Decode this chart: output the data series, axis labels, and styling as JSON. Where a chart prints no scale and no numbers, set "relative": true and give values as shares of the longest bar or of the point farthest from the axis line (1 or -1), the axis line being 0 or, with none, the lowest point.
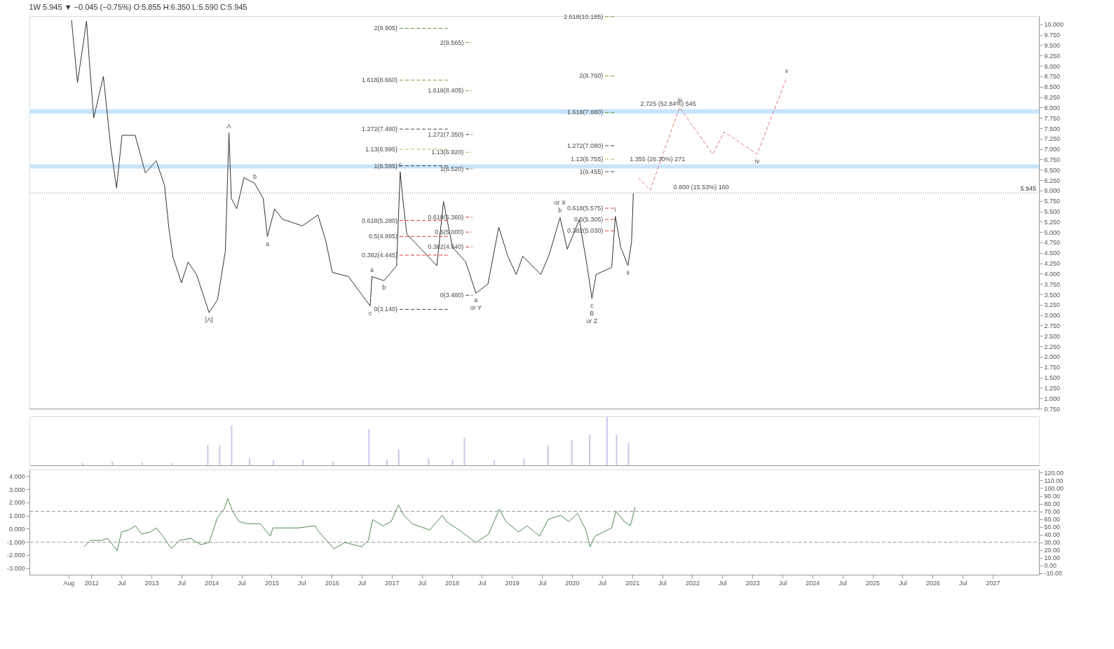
{
  "chart_data": [
    {
      "type": "line",
      "title": "1W 5.945 ▼ −0.045 (−0.75%) O:5.855 H:6.350 L:5.590 C:5.945",
      "xlim": [
        2010.97,
        2027.77
      ],
      "ylim": [
        0.75,
        10.2
      ],
      "tick_labels": "y",
      "yticks": [
        {
          "value": 0.75,
          "label": "0.750"
        },
        {
          "value": 1,
          "label": "1.000"
        },
        {
          "value": 1.25,
          "label": "1.250"
        },
        {
          "value": 1.5,
          "label": "1.500"
        },
        {
          "value": 1.75,
          "label": "1.750"
        },
        {
          "value": 2,
          "label": "2.000"
        },
        {
          "value": 2.25,
          "label": "2.250"
        },
        {
          "value": 2.5,
          "label": "2.500"
        },
        {
          "value": 2.75,
          "label": "2.750"
        },
        {
          "value": 3,
          "label": "3.000"
        },
        {
          "value": 3.25,
          "label": "3.250"
        },
        {
          "value": 3.5,
          "label": "3.500"
        },
        {
          "value": 3.75,
          "label": "3.750"
        },
        {
          "value": 4,
          "label": "4.000"
        },
        {
          "value": 4.25,
          "label": "4.250"
        },
        {
          "value": 4.5,
          "label": "4.500"
        },
        {
          "value": 4.75,
          "label": "4.750"
        },
        {
          "value": 5,
          "label": "5.000"
        },
        {
          "value": 5.25,
          "label": "5.250"
        },
        {
          "value": 5.5,
          "label": "5.500"
        },
        {
          "value": 5.75,
          "label": "5.750"
        },
        {
          "value": 6,
          "label": "6.000"
        },
        {
          "value": 6.25,
          "label": "6.250"
        },
        {
          "value": 6.5,
          "label": "6.500"
        },
        {
          "value": 6.75,
          "label": "6.750"
        },
        {
          "value": 7,
          "label": "7.000"
        },
        {
          "value": 7.25,
          "label": "7.250"
        },
        {
          "value": 7.5,
          "label": "7.500"
        },
        {
          "value": 7.75,
          "label": "7.750"
        },
        {
          "value": 8,
          "label": "8.000"
        },
        {
          "value": 8.25,
          "label": "8.250"
        },
        {
          "value": 8.5,
          "label": "8.500"
        },
        {
          "value": 8.75,
          "label": "8.750"
        },
        {
          "value": 9,
          "label": "9.000"
        },
        {
          "value": 9.25,
          "label": "9.250"
        },
        {
          "value": 9.5,
          "label": "9.500"
        },
        {
          "value": 9.75,
          "label": "9.750"
        },
        {
          "value": 10,
          "label": "10.000"
        }
      ],
      "series": [
        {
          "type": "line",
          "color": "#333333",
          "x": [
            2011.67,
            2011.77,
            2011.92,
            2011.98,
            2012.04,
            2012.2,
            2012.32,
            2012.42,
            2012.51,
            2012.73,
            2012.9,
            2013.08,
            2013.22,
            2013.29,
            2013.36,
            2013.5,
            2013.61,
            2013.75,
            2013.96,
            2014.1,
            2014.23,
            2014.29,
            2014.33,
            2014.42,
            2014.54,
            2014.72,
            2014.86,
            2014.93,
            2015.05,
            2015.18,
            2015.51,
            2015.77,
            2015.9,
            2016.01,
            2016.28,
            2016.41,
            2016.64,
            2016.67,
            2016.87,
            2017.08,
            2017.14,
            2017.18,
            2017.25,
            2017.49,
            2017.75,
            2017.86,
            2018.01,
            2018.23,
            2018.4,
            2018.6,
            2018.78,
            2018.93,
            2019.07,
            2019.18,
            2019.48,
            2019.62,
            2019.8,
            2019.92,
            2020.12,
            2020.25,
            2020.33,
            2020.4,
            2020.66,
            2020.72,
            2020.81,
            2020.93,
            2020.99,
            2021.02
          ],
          "values": [
            10.1,
            8.6,
            10.08,
            8.86,
            7.75,
            8.75,
            7.08,
            6.06,
            7.33,
            7.33,
            6.42,
            6.72,
            6.11,
            5.1,
            4.39,
            3.78,
            4.28,
            3.98,
            3.06,
            3.37,
            4.54,
            7.39,
            5.81,
            5.56,
            6.31,
            6.17,
            5.81,
            4.89,
            5.56,
            5.31,
            5.15,
            5.41,
            4.8,
            4.03,
            3.93,
            3.67,
            3.22,
            3.93,
            3.83,
            4.19,
            6.45,
            5.84,
            4.95,
            4.59,
            4.19,
            5.74,
            4.64,
            4.28,
            3.53,
            3.75,
            5.12,
            4.42,
            3.98,
            4.42,
            3.98,
            4.46,
            5.35,
            4.59,
            5.3,
            4.19,
            3.4,
            3.98,
            4.15,
            5.38,
            4.64,
            4.19,
            4.77,
            5.945
          ]
        },
        {
          "type": "line",
          "color": "#e57373",
          "line_style": "dashed",
          "x": [
            2021.1,
            2021.3,
            2021.79,
            2022.34,
            2022.53,
            2023.08,
            2023.57
          ],
          "values": [
            6.31,
            6.01,
            8.0,
            6.88,
            7.41,
            6.88,
            8.71
          ]
        },
        {
          "type": "line",
          "color": "#689f38",
          "line_style": "dashed",
          "x": [
            2017.13,
            2017.93
          ],
          "values": [
            9.905,
            9.905
          ]
        },
        {
          "type": "line",
          "color": "#689f38",
          "line_style": "dashed",
          "x": [
            2017.13,
            2017.93
          ],
          "values": [
            8.66,
            8.66
          ]
        },
        {
          "type": "line",
          "color": "#424242",
          "line_style": "dashed",
          "x": [
            2017.13,
            2017.93
          ],
          "values": [
            7.48,
            7.48
          ]
        },
        {
          "type": "line",
          "color": "#9ccc65",
          "line_style": "dashed",
          "x": [
            2017.13,
            2017.93
          ],
          "values": [
            6.995,
            6.995
          ]
        },
        {
          "type": "line",
          "color": "#424242",
          "line_style": "dashed",
          "x": [
            2017.13,
            2017.93
          ],
          "values": [
            6.595,
            6.595
          ]
        },
        {
          "type": "line",
          "color": "#e53935",
          "line_style": "dashed",
          "x": [
            2017.13,
            2017.93
          ],
          "values": [
            5.28,
            5.28
          ]
        },
        {
          "type": "line",
          "color": "#e53935",
          "line_style": "dashed",
          "x": [
            2017.13,
            2017.93
          ],
          "values": [
            4.895,
            4.895
          ]
        },
        {
          "type": "line",
          "color": "#e53935",
          "line_style": "dashed",
          "x": [
            2017.13,
            2017.93
          ],
          "values": [
            4.445,
            4.445
          ]
        },
        {
          "type": "line",
          "color": "#424242",
          "line_style": "dashed",
          "x": [
            2017.13,
            2017.93
          ],
          "values": [
            3.14,
            3.14
          ]
        },
        {
          "type": "line",
          "color": "#689f38",
          "line_style": "dashed",
          "x": [
            2018.23,
            2018.34
          ],
          "values": [
            9.565,
            9.565
          ]
        },
        {
          "type": "line",
          "color": "#689f38",
          "line_style": "dashed",
          "x": [
            2018.23,
            2018.34
          ],
          "values": [
            8.405,
            8.405
          ]
        },
        {
          "type": "line",
          "color": "#424242",
          "line_style": "dashed",
          "x": [
            2018.23,
            2018.34
          ],
          "values": [
            7.35,
            7.35
          ]
        },
        {
          "type": "line",
          "color": "#9ccc65",
          "line_style": "dashed",
          "x": [
            2018.23,
            2018.34
          ],
          "values": [
            6.92,
            6.92
          ]
        },
        {
          "type": "line",
          "color": "#424242",
          "line_style": "dashed",
          "x": [
            2018.23,
            2018.34
          ],
          "values": [
            6.52,
            6.52
          ]
        },
        {
          "type": "line",
          "color": "#e53935",
          "line_style": "dashed",
          "x": [
            2018.23,
            2018.34
          ],
          "values": [
            5.36,
            5.36
          ]
        },
        {
          "type": "line",
          "color": "#e53935",
          "line_style": "dashed",
          "x": [
            2018.23,
            2018.34
          ],
          "values": [
            5.0,
            5.0
          ]
        },
        {
          "type": "line",
          "color": "#e53935",
          "line_style": "dashed",
          "x": [
            2018.23,
            2018.34
          ],
          "values": [
            4.64,
            4.64
          ]
        },
        {
          "type": "line",
          "color": "#424242",
          "line_style": "dashed",
          "x": [
            2018.23,
            2018.34
          ],
          "values": [
            3.48,
            3.48
          ]
        },
        {
          "type": "line",
          "color": "#689f38",
          "line_style": "dashed",
          "x": [
            2020.55,
            2020.72
          ],
          "values": [
            10.185,
            10.185
          ]
        },
        {
          "type": "line",
          "color": "#689f38",
          "line_style": "dashed",
          "x": [
            2020.55,
            2020.72
          ],
          "values": [
            8.76,
            8.76
          ]
        },
        {
          "type": "line",
          "color": "#689f38",
          "line_style": "dashed",
          "x": [
            2020.55,
            2020.72
          ],
          "values": [
            7.88,
            7.88
          ]
        },
        {
          "type": "line",
          "color": "#424242",
          "line_style": "dashed",
          "x": [
            2020.55,
            2020.72
          ],
          "values": [
            7.08,
            7.08
          ]
        },
        {
          "type": "line",
          "color": "#9ccc65",
          "line_style": "dashed",
          "x": [
            2020.55,
            2020.72
          ],
          "values": [
            6.755,
            6.755
          ]
        },
        {
          "type": "line",
          "color": "#424242",
          "line_style": "dashed",
          "x": [
            2020.55,
            2020.72
          ],
          "values": [
            6.455,
            6.455
          ]
        },
        {
          "type": "line",
          "color": "#e53935",
          "line_style": "dashed",
          "x": [
            2020.55,
            2020.72
          ],
          "values": [
            5.575,
            5.575
          ]
        },
        {
          "type": "line",
          "color": "#e53935",
          "line_style": "dashed",
          "x": [
            2020.55,
            2020.72
          ],
          "values": [
            5.305,
            5.305
          ]
        },
        {
          "type": "line",
          "color": "#e53935",
          "line_style": "dashed",
          "x": [
            2020.55,
            2020.72
          ],
          "values": [
            5.03,
            5.03
          ]
        }
      ],
      "ref_lines": [
        {
          "axis": "y",
          "value": 5.945,
          "label": "5.945",
          "color": "#888888",
          "line_style": "dotted"
        }
      ],
      "bands": [
        {
          "axis": "y",
          "from": 6.53,
          "to": 6.63,
          "color": "#bbdefb"
        },
        {
          "axis": "y",
          "from": 7.85,
          "to": 7.96,
          "color": "#bbdefb"
        }
      ],
      "annotations": [
        {
          "text": "2(9.905)",
          "x": 2017.13,
          "y": 9.905
        },
        {
          "text": "1.618(8.660)",
          "x": 2017.13,
          "y": 8.66
        },
        {
          "text": "1.272(7.480)",
          "x": 2017.13,
          "y": 7.48
        },
        {
          "text": "1.13(6.995)",
          "x": 2017.13,
          "y": 6.995
        },
        {
          "text": "1(6.595)",
          "x": 2017.13,
          "y": 6.595
        },
        {
          "text": "0.618(5.280)",
          "x": 2017.13,
          "y": 5.28
        },
        {
          "text": "0.5(4.895)",
          "x": 2017.13,
          "y": 4.895
        },
        {
          "text": "0.382(4.445)",
          "x": 2017.13,
          "y": 4.445
        },
        {
          "text": "0(3.140)",
          "x": 2017.13,
          "y": 3.14
        },
        {
          "text": "2(9.565)",
          "x": 2018.23,
          "y": 9.565
        },
        {
          "text": "1.618(8.405)",
          "x": 2018.23,
          "y": 8.405
        },
        {
          "text": "1.272(7.350)",
          "x": 2018.23,
          "y": 7.35
        },
        {
          "text": "1.13(6.920)",
          "x": 2018.23,
          "y": 6.92
        },
        {
          "text": "1(6.520)",
          "x": 2018.23,
          "y": 6.52
        },
        {
          "text": "0.618(5.360)",
          "x": 2018.23,
          "y": 5.36
        },
        {
          "text": "0.5(5.000)",
          "x": 2018.23,
          "y": 5.0
        },
        {
          "text": "0.382(4.640)",
          "x": 2018.23,
          "y": 4.64
        },
        {
          "text": "0(3.480)",
          "x": 2018.23,
          "y": 3.48
        },
        {
          "text": "2.618(10.185)",
          "x": 2020.55,
          "y": 10.185
        },
        {
          "text": "2(8.760)",
          "x": 2020.55,
          "y": 8.76
        },
        {
          "text": "1.618(7.880)",
          "x": 2020.55,
          "y": 7.88
        },
        {
          "text": "1.272(7.080)",
          "x": 2020.55,
          "y": 7.08
        },
        {
          "text": "1.13(6.755)",
          "x": 2020.55,
          "y": 6.755
        },
        {
          "text": "1(6.455)",
          "x": 2020.55,
          "y": 6.455
        },
        {
          "text": "0.618(5.575)",
          "x": 2020.55,
          "y": 5.575
        },
        {
          "text": "0.5(5.305)",
          "x": 2020.55,
          "y": 5.305
        },
        {
          "text": "0.382(5.030)",
          "x": 2020.55,
          "y": 5.03
        },
        {
          "text": "2.725 (52.84%) 545",
          "x": 2021.6,
          "y": 7.96
        },
        {
          "text": "1.355 (26.30%) 271",
          "x": 2021.42,
          "y": 6.63
        },
        {
          "text": "0.800 (15.53%) 160",
          "x": 2022.15,
          "y": 5.945
        },
        {
          "text": "a",
          "x": 2014.93,
          "y": 4.89
        },
        {
          "text": "b",
          "x": 2014.72,
          "y": 6.17
        },
        {
          "text": "a",
          "x": 2016.67,
          "y": 3.93
        },
        {
          "text": "b",
          "x": 2016.87,
          "y": 3.83
        },
        {
          "text": "c",
          "x": 2016.64,
          "y": 3.22
        },
        {
          "text": "c",
          "x": 2017.14,
          "y": 6.45
        },
        {
          "text": "a",
          "x": 2018.4,
          "y": 3.53
        },
        {
          "text": "b",
          "x": 2019.8,
          "y": 5.35
        },
        {
          "text": "c",
          "x": 2020.33,
          "y": 3.4
        },
        {
          "text": "i",
          "x": 2020.72,
          "y": 5.38
        },
        {
          "text": "ii",
          "x": 2020.93,
          "y": 4.19
        },
        {
          "text": "iii",
          "x": 2021.79,
          "y": 8.0
        },
        {
          "text": "iv",
          "x": 2023.08,
          "y": 6.88
        },
        {
          "text": "v",
          "x": 2023.57,
          "y": 8.71
        },
        {
          "text": "A",
          "x": 2014.29,
          "y": 7.39
        },
        {
          "text": "[A]",
          "x": 2013.96,
          "y": 3.06
        },
        {
          "text": "B",
          "x": 2020.33,
          "y": 3.4
        },
        {
          "text": "or X",
          "x": 2019.8,
          "y": 5.35
        },
        {
          "text": "or Y",
          "x": 2018.4,
          "y": 3.53
        },
        {
          "text": "or Z",
          "x": 2020.33,
          "y": 3.4
        }
      ]
    },
    {
      "type": "bar",
      "relative": true,
      "tick_labels": false,
      "xlim": [
        2010.97,
        2027.77
      ],
      "series": [
        {
          "color": "#c5cae9",
          "x": [
            2011.8,
            2012.3,
            2012.8,
            2013.3,
            2013.9,
            2014.1,
            2014.3,
            2014.6,
            2015.0,
            2015.5,
            2016.0,
            2016.6,
            2016.9,
            2017.1,
            2017.6,
            2018.0,
            2018.2,
            2018.7,
            2019.2,
            2019.6,
            2020.0,
            2020.3,
            2020.59,
            2020.75,
            2020.95
          ],
          "values": [
            0.05,
            0.08,
            0.06,
            0.05,
            0.41,
            0.41,
            0.81,
            0.15,
            0.1,
            0.12,
            0.08,
            0.74,
            0.12,
            0.32,
            0.15,
            0.12,
            0.56,
            0.1,
            0.15,
            0.41,
            0.52,
            0.63,
            1.0,
            0.62,
            0.45
          ]
        }
      ]
    },
    {
      "type": "line",
      "xlim": [
        2010.97,
        2027.77
      ],
      "ylim": [
        -3.5,
        4.5
      ],
      "y2lim": [
        -12,
        124
      ],
      "xticks": [
        {
          "value": 2011.62,
          "label": "Aug"
        },
        2012,
        {
          "value": 2012.5,
          "label": "Jul"
        },
        2013,
        {
          "value": 2013.5,
          "label": "Jul"
        },
        2014,
        {
          "value": 2014.5,
          "label": "Jul"
        },
        2015,
        {
          "value": 2015.5,
          "label": "Jul"
        },
        2016,
        {
          "value": 2016.5,
          "label": "Jul"
        },
        2017,
        {
          "value": 2017.5,
          "label": "Jul"
        },
        2018,
        {
          "value": 2018.5,
          "label": "Jul"
        },
        2019,
        {
          "value": 2019.5,
          "label": "Jul"
        },
        2020,
        {
          "value": 2020.5,
          "label": "Jul"
        },
        2021,
        {
          "value": 2021.5,
          "label": "Jul"
        },
        2022,
        {
          "value": 2022.5,
          "label": "Jul"
        },
        2023,
        {
          "value": 2023.5,
          "label": "Jul"
        },
        2024,
        {
          "value": 2024.5,
          "label": "Jul"
        },
        2025,
        {
          "value": 2025.5,
          "label": "Jul"
        },
        2026,
        {
          "value": 2026.5,
          "label": "Jul"
        },
        2027
      ],
      "yticks": [
        {
          "value": -3,
          "label": "-3.000"
        },
        {
          "value": -2,
          "label": "-2.000"
        },
        {
          "value": -1,
          "label": "-1.000"
        },
        {
          "value": 0,
          "label": "0.000"
        },
        {
          "value": 1,
          "label": "1.000"
        },
        {
          "value": 2,
          "label": "2.000"
        },
        {
          "value": 3,
          "label": "3.000"
        },
        {
          "value": 4,
          "label": "4.000"
        }
      ],
      "y2ticks": [
        {
          "value": -10,
          "label": "-10.00"
        },
        {
          "value": 0,
          "label": "0.00"
        },
        {
          "value": 10,
          "label": "10.00"
        },
        {
          "value": 20,
          "label": "20.00"
        },
        {
          "value": 30,
          "label": "30.00"
        },
        {
          "value": 40,
          "label": "40.00"
        },
        {
          "value": 50,
          "label": "50.00"
        },
        {
          "value": 60,
          "label": "60.00"
        },
        {
          "value": 70,
          "label": "70.00"
        },
        {
          "value": 80,
          "label": "80.00"
        },
        {
          "value": 90,
          "label": "90.00"
        },
        {
          "value": 100,
          "label": "100.00"
        },
        {
          "value": 110,
          "label": "110.00"
        },
        {
          "value": 120,
          "label": "120.00"
        }
      ],
      "ref_lines": [
        {
          "axis": "y2",
          "value": 70,
          "color": "#999999",
          "line_style": "dashed"
        },
        {
          "axis": "y2",
          "value": 30,
          "color": "#999999",
          "line_style": "dashed"
        }
      ],
      "series": [
        {
          "type": "line",
          "color": "#4e8a4e",
          "x": [
            2011.88,
            2011.99,
            2012.17,
            2012.27,
            2012.38,
            2012.43,
            2012.5,
            2012.62,
            2012.73,
            2012.84,
            2012.98,
            2013.08,
            2013.19,
            2013.33,
            2013.47,
            2013.65,
            2013.82,
            2013.96,
            2014.1,
            2014.21,
            2014.27,
            2014.35,
            2014.46,
            2014.6,
            2014.81,
            2014.98,
            2015.02,
            2015.23,
            2015.44,
            2015.72,
            2015.79,
            2016.04,
            2016.22,
            2016.5,
            2016.61,
            2016.68,
            2016.85,
            2016.99,
            2017.11,
            2017.2,
            2017.34,
            2017.63,
            2017.84,
            2017.91,
            2018.12,
            2018.4,
            2018.61,
            2018.79,
            2018.9,
            2019.11,
            2019.25,
            2019.46,
            2019.6,
            2019.81,
            2019.95,
            2020.09,
            2020.23,
            2020.3,
            2020.38,
            2020.52,
            2020.66,
            2020.73,
            2020.87,
            2020.97,
            2021.05
          ],
          "values": [
            -1.37,
            -0.89,
            -0.89,
            -0.73,
            -1.37,
            -1.68,
            -0.25,
            -0.1,
            0.22,
            -0.41,
            -0.25,
            0.06,
            -0.57,
            -1.52,
            -0.89,
            -0.73,
            -1.21,
            -1.05,
            0.86,
            1.49,
            2.29,
            1.33,
            0.54,
            0.38,
            0.38,
            -0.57,
            0.06,
            0.06,
            0.06,
            0.22,
            -0.25,
            -1.52,
            -1.05,
            -1.37,
            -0.89,
            0.7,
            0.22,
            0.54,
            1.81,
            1.02,
            0.38,
            -0.1,
            1.02,
            0.54,
            -0.1,
            -1.05,
            -0.41,
            1.49,
            0.54,
            -0.25,
            0.22,
            -0.57,
            0.7,
            1.02,
            0.54,
            1.17,
            -0.1,
            -1.37,
            -0.57,
            -0.25,
            0.06,
            1.33,
            0.54,
            0.22,
            1.64
          ]
        }
      ]
    }
  ]
}
